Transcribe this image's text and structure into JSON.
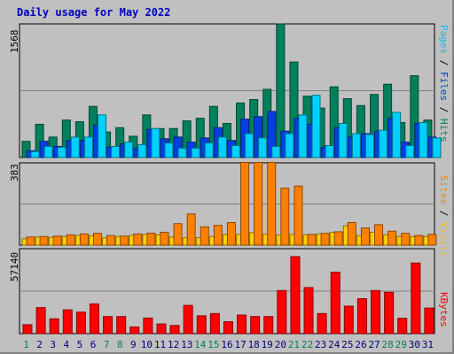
{
  "chart_data": [
    {
      "type": "bar",
      "title": "Daily usage for May 2022",
      "panel": "top",
      "ylabel": "1568",
      "ylim": [
        0,
        1568
      ],
      "grid": true,
      "categories": [
        "1",
        "2",
        "3",
        "4",
        "5",
        "6",
        "7",
        "8",
        "9",
        "10",
        "11",
        "12",
        "13",
        "14",
        "15",
        "16",
        "17",
        "18",
        "19",
        "20",
        "21",
        "22",
        "23",
        "24",
        "25",
        "26",
        "27",
        "28",
        "29",
        "30",
        "31"
      ],
      "weekend_days": [
        "1",
        "7",
        "8",
        "14",
        "15",
        "21",
        "22",
        "28",
        "29"
      ],
      "series": [
        {
          "name": "Hits",
          "color": "#00805c",
          "values": [
            190,
            390,
            240,
            440,
            420,
            600,
            300,
            350,
            250,
            500,
            340,
            340,
            430,
            460,
            600,
            400,
            640,
            680,
            800,
            1568,
            1120,
            720,
            580,
            830,
            690,
            610,
            740,
            860,
            410,
            960,
            440
          ]
        },
        {
          "name": "Files",
          "color": "#0040e0",
          "values": [
            80,
            190,
            130,
            200,
            200,
            380,
            120,
            160,
            110,
            330,
            220,
            240,
            180,
            230,
            350,
            200,
            450,
            480,
            540,
            310,
            460,
            390,
            120,
            350,
            240,
            280,
            310,
            460,
            180,
            400,
            240
          ]
        },
        {
          "name": "Pages",
          "color": "#00d0ff",
          "values": [
            70,
            130,
            120,
            240,
            240,
            500,
            130,
            180,
            150,
            340,
            170,
            110,
            110,
            170,
            240,
            140,
            280,
            230,
            130,
            280,
            500,
            730,
            140,
            400,
            280,
            270,
            320,
            530,
            140,
            410,
            230
          ]
        }
      ]
    },
    {
      "type": "bar",
      "panel": "middle",
      "ylabel": "383",
      "ylim": [
        0,
        383
      ],
      "grid": true,
      "categories": [
        "1",
        "2",
        "3",
        "4",
        "5",
        "6",
        "7",
        "8",
        "9",
        "10",
        "11",
        "12",
        "13",
        "14",
        "15",
        "16",
        "17",
        "18",
        "19",
        "20",
        "21",
        "22",
        "23",
        "24",
        "25",
        "26",
        "27",
        "28",
        "29",
        "30",
        "31"
      ],
      "series": [
        {
          "name": "Visits",
          "color": "#ffd000",
          "values": [
            30,
            38,
            36,
            40,
            45,
            44,
            34,
            40,
            45,
            50,
            48,
            38,
            34,
            35,
            40,
            50,
            50,
            58,
            52,
            48,
            50,
            48,
            52,
            60,
            90,
            44,
            60,
            48,
            40,
            40,
            40
          ]
        },
        {
          "name": "Sites",
          "color": "#ff8000",
          "values": [
            38,
            40,
            42,
            48,
            52,
            55,
            45,
            42,
            52,
            56,
            60,
            100,
            145,
            85,
            92,
            105,
            385,
            385,
            385,
            265,
            275,
            50,
            55,
            62,
            105,
            80,
            95,
            65,
            55,
            45,
            50
          ]
        }
      ]
    },
    {
      "type": "bar",
      "panel": "bottom",
      "ylabel": "57140",
      "ylim": [
        0,
        57140
      ],
      "grid": true,
      "categories": [
        "1",
        "2",
        "3",
        "4",
        "5",
        "6",
        "7",
        "8",
        "9",
        "10",
        "11",
        "12",
        "13",
        "14",
        "15",
        "16",
        "17",
        "18",
        "19",
        "20",
        "21",
        "22",
        "23",
        "24",
        "25",
        "26",
        "27",
        "28",
        "29",
        "30",
        "31"
      ],
      "series": [
        {
          "name": "KBytes",
          "color": "#ff0000",
          "values": [
            6000,
            17500,
            10000,
            16000,
            14500,
            20000,
            11500,
            11500,
            4500,
            10500,
            6500,
            5500,
            19000,
            12000,
            13500,
            8000,
            12500,
            11500,
            11500,
            29000,
            51800,
            31000,
            13500,
            41300,
            18500,
            23500,
            29000,
            27800,
            10300,
            47500,
            17200
          ]
        }
      ]
    }
  ],
  "right_labels": {
    "top": [
      {
        "text": "Pages",
        "color": "#00c0ff"
      },
      {
        "text": " / ",
        "color": "#000000"
      },
      {
        "text": "Files",
        "color": "#0040e0"
      },
      {
        "text": " / ",
        "color": "#000000"
      },
      {
        "text": "Hits",
        "color": "#00805c"
      }
    ],
    "middle": [
      {
        "text": "Sites",
        "color": "#ff8000"
      },
      {
        "text": " / ",
        "color": "#000000"
      },
      {
        "text": "Visits",
        "color": "#e8c000"
      }
    ],
    "bottom": [
      {
        "text": "KBytes",
        "color": "#ff0000"
      }
    ]
  }
}
